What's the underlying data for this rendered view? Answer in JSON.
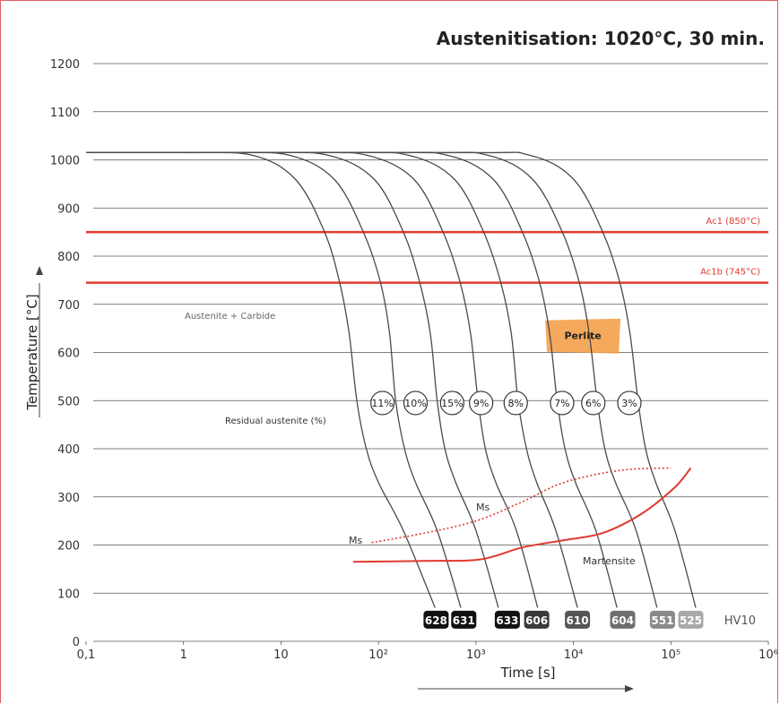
{
  "chart_data": {
    "type": "line",
    "title": "Austenitisation: 1020°C, 30 min.",
    "xlabel": "Time [s]",
    "ylabel": "Temperature [°C]",
    "x_scale": "log",
    "xlim": [
      0.1,
      1000000
    ],
    "ylim": [
      0,
      1200
    ],
    "x_ticks": [
      "0,1",
      "1",
      "10",
      "10²",
      "10³",
      "10⁴",
      "10⁵",
      "10⁶"
    ],
    "y_ticks": [
      "0",
      "100",
      "200",
      "300",
      "400",
      "500",
      "600",
      "700",
      "800",
      "900",
      "1000",
      "1100",
      "1200"
    ],
    "grid": true,
    "reference_lines": [
      {
        "label": "Ac1 (850°C)",
        "y": 850,
        "color": "#e03a2f"
      },
      {
        "label": "Ac1b (745°C)",
        "y": 745,
        "color": "#e03a2f"
      }
    ],
    "cooling_curves": [
      {
        "hv10": "628",
        "residual_austenite": "11%",
        "points": [
          [
            1,
            1015
          ],
          [
            5,
            1010
          ],
          [
            14,
            960
          ],
          [
            28,
            850
          ],
          [
            40,
            745
          ],
          [
            50,
            640
          ],
          [
            60,
            500
          ],
          [
            75,
            400
          ],
          [
            100,
            330
          ],
          [
            180,
            230
          ],
          [
            380,
            70
          ]
        ]
      },
      {
        "hv10": "631",
        "residual_austenite": "10%",
        "points": [
          [
            2.5,
            1015
          ],
          [
            12,
            1010
          ],
          [
            35,
            960
          ],
          [
            70,
            850
          ],
          [
            105,
            745
          ],
          [
            130,
            640
          ],
          [
            150,
            500
          ],
          [
            185,
            400
          ],
          [
            240,
            330
          ],
          [
            400,
            230
          ],
          [
            700,
            70
          ]
        ]
      },
      {
        "hv10": "633",
        "residual_austenite": "15%",
        "points": [
          [
            6,
            1015
          ],
          [
            30,
            1010
          ],
          [
            90,
            960
          ],
          [
            180,
            850
          ],
          [
            265,
            745
          ],
          [
            340,
            640
          ],
          [
            400,
            500
          ],
          [
            480,
            400
          ],
          [
            620,
            330
          ],
          [
            1000,
            230
          ],
          [
            1700,
            70
          ]
        ]
      },
      {
        "hv10": "606",
        "residual_austenite": "9%",
        "points": [
          [
            15,
            1015
          ],
          [
            75,
            1010
          ],
          [
            230,
            960
          ],
          [
            460,
            850
          ],
          [
            690,
            745
          ],
          [
            880,
            640
          ],
          [
            1050,
            500
          ],
          [
            1250,
            400
          ],
          [
            1600,
            330
          ],
          [
            2600,
            230
          ],
          [
            4300,
            70
          ]
        ]
      },
      {
        "hv10": "610",
        "residual_austenite": "8%",
        "points": [
          [
            40,
            1015
          ],
          [
            200,
            1010
          ],
          [
            600,
            960
          ],
          [
            1200,
            850
          ],
          [
            1800,
            745
          ],
          [
            2300,
            640
          ],
          [
            2700,
            500
          ],
          [
            3300,
            400
          ],
          [
            4200,
            330
          ],
          [
            6600,
            230
          ],
          [
            11000,
            70
          ]
        ]
      },
      {
        "hv10": "604",
        "residual_austenite": "7%",
        "points": [
          [
            100,
            1015
          ],
          [
            500,
            1010
          ],
          [
            1500,
            960
          ],
          [
            3000,
            850
          ],
          [
            4500,
            745
          ],
          [
            5700,
            640
          ],
          [
            6800,
            500
          ],
          [
            8200,
            400
          ],
          [
            10500,
            330
          ],
          [
            17000,
            230
          ],
          [
            28000,
            70
          ]
        ]
      },
      {
        "hv10": "551",
        "residual_austenite": "6%",
        "points": [
          [
            250,
            1015
          ],
          [
            1300,
            1010
          ],
          [
            3800,
            960
          ],
          [
            7700,
            850
          ],
          [
            11500,
            745
          ],
          [
            14500,
            640
          ],
          [
            17500,
            500
          ],
          [
            21000,
            400
          ],
          [
            27000,
            330
          ],
          [
            44000,
            230
          ],
          [
            72000,
            70
          ]
        ]
      },
      {
        "hv10": "525",
        "residual_austenite": "3%",
        "points": [
          [
            700,
            1015
          ],
          [
            3500,
            1010
          ],
          [
            10000,
            960
          ],
          [
            20000,
            850
          ],
          [
            30000,
            745
          ],
          [
            38000,
            640
          ],
          [
            46000,
            500
          ],
          [
            55000,
            400
          ],
          [
            70000,
            330
          ],
          [
            110000,
            230
          ],
          [
            180000,
            70
          ]
        ]
      }
    ],
    "ms_dotted": [
      [
        85,
        205
      ],
      [
        300,
        225
      ],
      [
        1000,
        250
      ],
      [
        3000,
        290
      ],
      [
        8000,
        330
      ],
      [
        30000,
        355
      ],
      [
        100000,
        360
      ]
    ],
    "ms_solid": [
      [
        55,
        165
      ],
      [
        300,
        167
      ],
      [
        1100,
        170
      ],
      [
        3000,
        195
      ],
      [
        8000,
        210
      ],
      [
        20000,
        225
      ],
      [
        50000,
        265
      ],
      [
        110000,
        320
      ],
      [
        160000,
        360
      ]
    ],
    "region_labels": {
      "austenite_carbide": "Austenite + Carbide",
      "perlite": "Perlite",
      "residual_austenite": "Residual austenite (%)",
      "ms_upper": "Ms",
      "ms_lower": "Ms",
      "martensite": "Martensite"
    },
    "hv10_label": "HV10",
    "colors": {
      "curves": "#4a4a4a",
      "red": "#e03a2f",
      "perlite": "#f4a04a",
      "grid": "#555555"
    }
  }
}
